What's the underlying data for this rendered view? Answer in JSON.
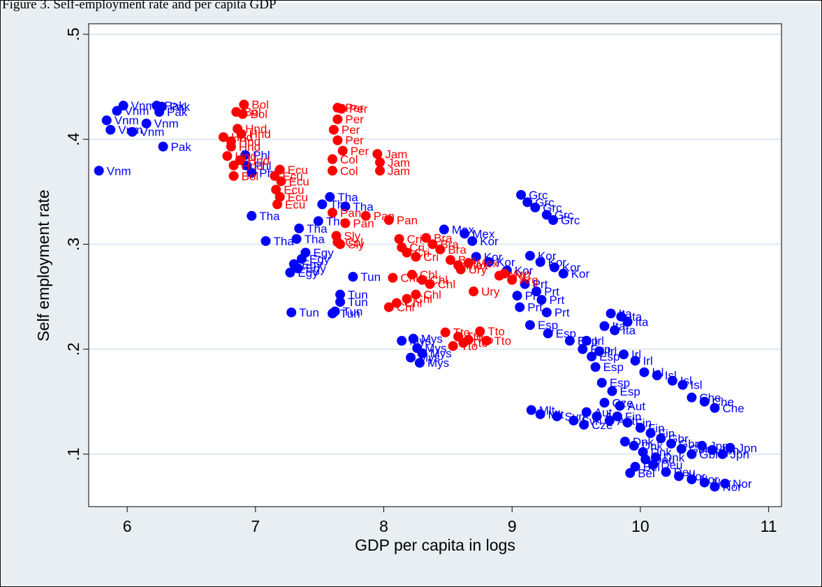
{
  "header": {
    "text": "Figure 3. Self-employment rate and per capita GDP"
  },
  "chart_data": {
    "type": "scatter",
    "xlabel": "GDP per capita in logs",
    "ylabel": "Self employment rate",
    "xlim": [
      5.7,
      11.1
    ],
    "ylim": [
      0.05,
      0.51
    ],
    "xticks": [
      6,
      7,
      8,
      9,
      10,
      11
    ],
    "yticks": [
      0.1,
      0.2,
      0.3,
      0.4,
      0.5
    ],
    "xtick_labels": [
      "6",
      "7",
      "8",
      "9",
      "10",
      "11"
    ],
    "ytick_labels": [
      ".1",
      ".2",
      ".3",
      ".4",
      ".5"
    ],
    "grid": "horizontal",
    "legend": "none",
    "colors": {
      "blue": "#0000ff",
      "red": "#ff0000",
      "plot_bg": "#ffffff",
      "outer_bg": "#e8eef2",
      "grid": "#dfe8ee"
    },
    "series": [
      {
        "color": "#0000ff",
        "points": [
          {
            "x": 5.97,
            "y": 0.432,
            "label": "Vnm"
          },
          {
            "x": 5.92,
            "y": 0.427,
            "label": "Vnm"
          },
          {
            "x": 5.84,
            "y": 0.418,
            "label": "Vnm"
          },
          {
            "x": 5.87,
            "y": 0.409,
            "label": "Vnm"
          },
          {
            "x": 6.04,
            "y": 0.407,
            "label": "Vnm"
          },
          {
            "x": 6.15,
            "y": 0.415,
            "label": "Vnm"
          },
          {
            "x": 5.78,
            "y": 0.37,
            "label": "Vnm"
          },
          {
            "x": 6.23,
            "y": 0.432,
            "label": "Pak"
          },
          {
            "x": 6.27,
            "y": 0.431,
            "label": "Pak"
          },
          {
            "x": 6.25,
            "y": 0.426,
            "label": "Pak"
          },
          {
            "x": 6.28,
            "y": 0.393,
            "label": "Pak"
          },
          {
            "x": 6.92,
            "y": 0.385,
            "label": "Phl"
          },
          {
            "x": 6.93,
            "y": 0.375,
            "label": "Phl"
          },
          {
            "x": 6.97,
            "y": 0.368,
            "label": "Phl"
          },
          {
            "x": 6.97,
            "y": 0.327,
            "label": "Tha"
          },
          {
            "x": 7.08,
            "y": 0.303,
            "label": "Tha"
          },
          {
            "x": 7.34,
            "y": 0.315,
            "label": "Tha"
          },
          {
            "x": 7.58,
            "y": 0.345,
            "label": "Tha"
          },
          {
            "x": 7.52,
            "y": 0.338,
            "label": "Tha"
          },
          {
            "x": 7.7,
            "y": 0.336,
            "label": "Tha"
          },
          {
            "x": 7.32,
            "y": 0.305,
            "label": "Tha"
          },
          {
            "x": 7.49,
            "y": 0.322,
            "label": "Tha"
          },
          {
            "x": 7.39,
            "y": 0.292,
            "label": "Egy"
          },
          {
            "x": 7.3,
            "y": 0.281,
            "label": "Egy"
          },
          {
            "x": 7.36,
            "y": 0.286,
            "label": "Egy"
          },
          {
            "x": 7.33,
            "y": 0.277,
            "label": "Egy"
          },
          {
            "x": 7.27,
            "y": 0.273,
            "label": "Egy"
          },
          {
            "x": 7.76,
            "y": 0.269,
            "label": "Tun"
          },
          {
            "x": 7.66,
            "y": 0.252,
            "label": "Tun"
          },
          {
            "x": 7.66,
            "y": 0.245,
            "label": "Tun"
          },
          {
            "x": 7.28,
            "y": 0.235,
            "label": "Tun"
          },
          {
            "x": 7.6,
            "y": 0.234,
            "label": "Tun"
          },
          {
            "x": 7.62,
            "y": 0.236,
            "label": "Tun"
          },
          {
            "x": 8.47,
            "y": 0.314,
            "label": "Mex"
          },
          {
            "x": 8.63,
            "y": 0.31,
            "label": "Mex"
          },
          {
            "x": 8.69,
            "y": 0.303,
            "label": "Kor"
          },
          {
            "x": 8.72,
            "y": 0.288,
            "label": "Kor"
          },
          {
            "x": 8.82,
            "y": 0.283,
            "label": "Kor"
          },
          {
            "x": 8.96,
            "y": 0.275,
            "label": "Kor"
          },
          {
            "x": 9.14,
            "y": 0.289,
            "label": "Kor"
          },
          {
            "x": 9.22,
            "y": 0.283,
            "label": "Kor"
          },
          {
            "x": 9.33,
            "y": 0.278,
            "label": "Kor"
          },
          {
            "x": 9.4,
            "y": 0.272,
            "label": "Kor"
          },
          {
            "x": 9.07,
            "y": 0.347,
            "label": "Grc"
          },
          {
            "x": 9.12,
            "y": 0.34,
            "label": "Grc"
          },
          {
            "x": 9.18,
            "y": 0.335,
            "label": "Grc"
          },
          {
            "x": 9.27,
            "y": 0.328,
            "label": "Grc"
          },
          {
            "x": 9.32,
            "y": 0.323,
            "label": "Grc"
          },
          {
            "x": 9.04,
            "y": 0.251,
            "label": "Prt"
          },
          {
            "x": 9.06,
            "y": 0.24,
            "label": "Prt"
          },
          {
            "x": 9.1,
            "y": 0.262,
            "label": "Prt"
          },
          {
            "x": 9.19,
            "y": 0.255,
            "label": "Prt"
          },
          {
            "x": 9.23,
            "y": 0.247,
            "label": "Prt"
          },
          {
            "x": 9.27,
            "y": 0.235,
            "label": "Prt"
          },
          {
            "x": 8.23,
            "y": 0.21,
            "label": "Mys"
          },
          {
            "x": 8.14,
            "y": 0.208,
            "label": "Mys"
          },
          {
            "x": 8.21,
            "y": 0.192,
            "label": "Mys"
          },
          {
            "x": 8.28,
            "y": 0.187,
            "label": "Mys"
          },
          {
            "x": 8.3,
            "y": 0.196,
            "label": "Mys"
          },
          {
            "x": 8.26,
            "y": 0.201,
            "label": "Mys"
          },
          {
            "x": 9.14,
            "y": 0.223,
            "label": "Esp"
          },
          {
            "x": 9.28,
            "y": 0.215,
            "label": "Esp"
          },
          {
            "x": 9.45,
            "y": 0.208,
            "label": "Esp"
          },
          {
            "x": 9.55,
            "y": 0.2,
            "label": "Esp"
          },
          {
            "x": 9.62,
            "y": 0.193,
            "label": "Esp"
          },
          {
            "x": 9.65,
            "y": 0.183,
            "label": "Esp"
          },
          {
            "x": 9.7,
            "y": 0.168,
            "label": "Esp"
          },
          {
            "x": 9.78,
            "y": 0.16,
            "label": "Esp"
          },
          {
            "x": 9.72,
            "y": 0.222,
            "label": "Ita"
          },
          {
            "x": 9.77,
            "y": 0.234,
            "label": "Ita"
          },
          {
            "x": 9.85,
            "y": 0.231,
            "label": "Ita"
          },
          {
            "x": 9.9,
            "y": 0.226,
            "label": "Ita"
          },
          {
            "x": 9.8,
            "y": 0.218,
            "label": "Ita"
          },
          {
            "x": 9.87,
            "y": 0.195,
            "label": "Irl"
          },
          {
            "x": 9.96,
            "y": 0.189,
            "label": "Irl"
          },
          {
            "x": 9.58,
            "y": 0.208,
            "label": "Irl"
          },
          {
            "x": 9.68,
            "y": 0.198,
            "label": "Irl"
          },
          {
            "x": 9.15,
            "y": 0.142,
            "label": "Mlt"
          },
          {
            "x": 9.22,
            "y": 0.138,
            "label": "Mlt"
          },
          {
            "x": 9.35,
            "y": 0.136,
            "label": "Svn"
          },
          {
            "x": 9.48,
            "y": 0.132,
            "label": "Svn"
          },
          {
            "x": 9.56,
            "y": 0.128,
            "label": "Cze"
          },
          {
            "x": 9.72,
            "y": 0.149,
            "label": "Cze"
          },
          {
            "x": 10.03,
            "y": 0.178,
            "label": "Isl"
          },
          {
            "x": 10.13,
            "y": 0.175,
            "label": "Isl"
          },
          {
            "x": 10.25,
            "y": 0.17,
            "label": "Isl"
          },
          {
            "x": 10.33,
            "y": 0.166,
            "label": "Isl"
          },
          {
            "x": 10.4,
            "y": 0.154,
            "label": "Che"
          },
          {
            "x": 10.5,
            "y": 0.15,
            "label": "Che"
          },
          {
            "x": 10.58,
            "y": 0.144,
            "label": "Che"
          },
          {
            "x": 9.82,
            "y": 0.136,
            "label": "Fin"
          },
          {
            "x": 9.9,
            "y": 0.13,
            "label": "Fin"
          },
          {
            "x": 10.0,
            "y": 0.125,
            "label": "Fin"
          },
          {
            "x": 10.08,
            "y": 0.12,
            "label": "Fin"
          },
          {
            "x": 10.16,
            "y": 0.115,
            "label": "Gbr"
          },
          {
            "x": 10.24,
            "y": 0.11,
            "label": "Gbr"
          },
          {
            "x": 10.32,
            "y": 0.105,
            "label": "Gbr"
          },
          {
            "x": 10.4,
            "y": 0.1,
            "label": "Gbr"
          },
          {
            "x": 10.48,
            "y": 0.108,
            "label": "Jpn"
          },
          {
            "x": 10.56,
            "y": 0.104,
            "label": "Jpn"
          },
          {
            "x": 10.64,
            "y": 0.1,
            "label": "Jpn"
          },
          {
            "x": 10.7,
            "y": 0.106,
            "label": "Jpn"
          },
          {
            "x": 9.92,
            "y": 0.082,
            "label": "Bel"
          },
          {
            "x": 9.96,
            "y": 0.088,
            "label": "Bel"
          },
          {
            "x": 10.04,
            "y": 0.095,
            "label": "Deu"
          },
          {
            "x": 10.1,
            "y": 0.09,
            "label": "Deu"
          },
          {
            "x": 10.2,
            "y": 0.083,
            "label": "Deu"
          },
          {
            "x": 10.3,
            "y": 0.079,
            "label": "Nor"
          },
          {
            "x": 10.4,
            "y": 0.076,
            "label": "Nor"
          },
          {
            "x": 10.5,
            "y": 0.073,
            "label": "Nor"
          },
          {
            "x": 10.58,
            "y": 0.069,
            "label": "Nor"
          },
          {
            "x": 10.66,
            "y": 0.072,
            "label": "Nor"
          },
          {
            "x": 9.88,
            "y": 0.112,
            "label": "Dnk"
          },
          {
            "x": 9.95,
            "y": 0.108,
            "label": "Dnk"
          },
          {
            "x": 10.02,
            "y": 0.102,
            "label": "Dnk"
          },
          {
            "x": 10.12,
            "y": 0.097,
            "label": "Dnk"
          },
          {
            "x": 9.58,
            "y": 0.14,
            "label": "Aut"
          },
          {
            "x": 9.66,
            "y": 0.136,
            "label": "Aut"
          },
          {
            "x": 9.76,
            "y": 0.132,
            "label": "Aut"
          },
          {
            "x": 9.84,
            "y": 0.146,
            "label": "Aut"
          }
        ]
      },
      {
        "color": "#ff0000",
        "points": [
          {
            "x": 6.91,
            "y": 0.433,
            "label": "Bol"
          },
          {
            "x": 6.85,
            "y": 0.426,
            "label": "Bol"
          },
          {
            "x": 6.9,
            "y": 0.424,
            "label": "Bol"
          },
          {
            "x": 6.83,
            "y": 0.365,
            "label": "Bol"
          },
          {
            "x": 6.86,
            "y": 0.41,
            "label": "Hnd"
          },
          {
            "x": 6.89,
            "y": 0.405,
            "label": "Hnd"
          },
          {
            "x": 6.75,
            "y": 0.402,
            "label": "Hnd"
          },
          {
            "x": 6.81,
            "y": 0.398,
            "label": "Hnd"
          },
          {
            "x": 6.81,
            "y": 0.393,
            "label": "Hnd"
          },
          {
            "x": 6.78,
            "y": 0.384,
            "label": "Hnd"
          },
          {
            "x": 6.88,
            "y": 0.38,
            "label": "Hnd"
          },
          {
            "x": 6.83,
            "y": 0.375,
            "label": "Hnd"
          },
          {
            "x": 7.19,
            "y": 0.371,
            "label": "Ecu"
          },
          {
            "x": 7.15,
            "y": 0.365,
            "label": "Ecu"
          },
          {
            "x": 7.2,
            "y": 0.36,
            "label": "Ecu"
          },
          {
            "x": 7.16,
            "y": 0.352,
            "label": "Ecu"
          },
          {
            "x": 7.19,
            "y": 0.345,
            "label": "Ecu"
          },
          {
            "x": 7.17,
            "y": 0.338,
            "label": "Ecu"
          },
          {
            "x": 7.64,
            "y": 0.43,
            "label": "Per"
          },
          {
            "x": 7.67,
            "y": 0.429,
            "label": "Per"
          },
          {
            "x": 7.64,
            "y": 0.419,
            "label": "Per"
          },
          {
            "x": 7.61,
            "y": 0.409,
            "label": "Per"
          },
          {
            "x": 7.64,
            "y": 0.399,
            "label": "Per"
          },
          {
            "x": 7.68,
            "y": 0.389,
            "label": "Per"
          },
          {
            "x": 7.6,
            "y": 0.381,
            "label": "Col"
          },
          {
            "x": 7.6,
            "y": 0.37,
            "label": "Col"
          },
          {
            "x": 7.64,
            "y": 0.302,
            "label": "Col"
          },
          {
            "x": 7.95,
            "y": 0.386,
            "label": "Jam"
          },
          {
            "x": 7.97,
            "y": 0.378,
            "label": "Jam"
          },
          {
            "x": 7.97,
            "y": 0.37,
            "label": "Jam"
          },
          {
            "x": 7.6,
            "y": 0.33,
            "label": "Pan"
          },
          {
            "x": 7.86,
            "y": 0.327,
            "label": "Pan"
          },
          {
            "x": 8.04,
            "y": 0.323,
            "label": "Pan"
          },
          {
            "x": 7.7,
            "y": 0.32,
            "label": "Pan"
          },
          {
            "x": 7.63,
            "y": 0.308,
            "label": "Sly"
          },
          {
            "x": 7.66,
            "y": 0.3,
            "label": "Sly"
          },
          {
            "x": 8.12,
            "y": 0.305,
            "label": "Cri"
          },
          {
            "x": 8.14,
            "y": 0.297,
            "label": "Cri"
          },
          {
            "x": 8.18,
            "y": 0.292,
            "label": "Cri"
          },
          {
            "x": 8.25,
            "y": 0.288,
            "label": "Cri"
          },
          {
            "x": 8.33,
            "y": 0.306,
            "label": "Bra"
          },
          {
            "x": 8.38,
            "y": 0.3,
            "label": "Bra"
          },
          {
            "x": 8.44,
            "y": 0.295,
            "label": "Bra"
          },
          {
            "x": 8.52,
            "y": 0.285,
            "label": "Bra"
          },
          {
            "x": 8.58,
            "y": 0.28,
            "label": "Mex"
          },
          {
            "x": 8.66,
            "y": 0.282,
            "label": "Mex"
          },
          {
            "x": 8.07,
            "y": 0.268,
            "label": "Chl"
          },
          {
            "x": 8.22,
            "y": 0.271,
            "label": "Chl"
          },
          {
            "x": 8.3,
            "y": 0.266,
            "label": "Chl"
          },
          {
            "x": 8.36,
            "y": 0.262,
            "label": "Chl"
          },
          {
            "x": 8.04,
            "y": 0.24,
            "label": "Chl"
          },
          {
            "x": 8.1,
            "y": 0.244,
            "label": "Chl"
          },
          {
            "x": 8.18,
            "y": 0.248,
            "label": "Chl"
          },
          {
            "x": 8.25,
            "y": 0.252,
            "label": "Chl"
          },
          {
            "x": 8.7,
            "y": 0.255,
            "label": "Ury"
          },
          {
            "x": 8.6,
            "y": 0.276,
            "label": "Ury"
          },
          {
            "x": 8.9,
            "y": 0.27,
            "label": "Arg"
          },
          {
            "x": 9.0,
            "y": 0.266,
            "label": "Arg"
          },
          {
            "x": 8.94,
            "y": 0.272,
            "label": "Arg"
          },
          {
            "x": 8.48,
            "y": 0.216,
            "label": "Tto"
          },
          {
            "x": 8.58,
            "y": 0.212,
            "label": "Tto"
          },
          {
            "x": 8.66,
            "y": 0.209,
            "label": "Tto"
          },
          {
            "x": 8.75,
            "y": 0.217,
            "label": "Tto"
          },
          {
            "x": 8.54,
            "y": 0.203,
            "label": "Tto"
          },
          {
            "x": 8.62,
            "y": 0.206,
            "label": "Tto"
          },
          {
            "x": 8.8,
            "y": 0.208,
            "label": "Tto"
          }
        ]
      }
    ]
  }
}
